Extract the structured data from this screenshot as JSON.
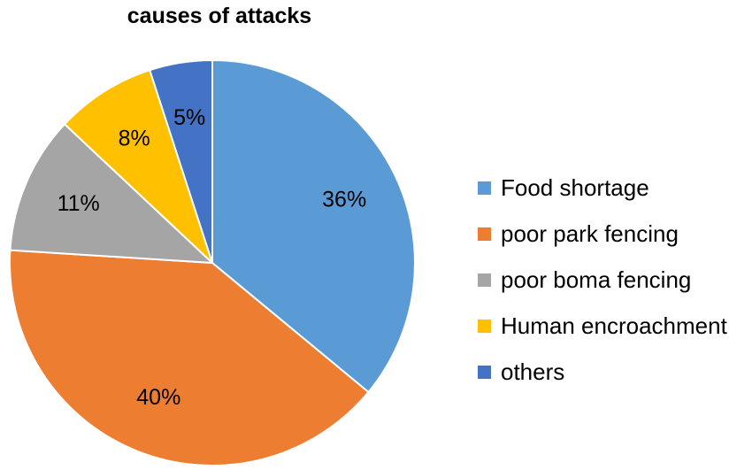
{
  "chart_data": {
    "type": "pie",
    "title": "causes of attacks",
    "categories": [
      "Food shortage",
      "poor park fencing",
      "poor boma fencing",
      "Human encroachment",
      "others"
    ],
    "values": [
      36,
      40,
      11,
      8,
      5
    ],
    "labels": [
      "36%",
      "40%",
      "11%",
      "8%",
      "5%"
    ],
    "colors": [
      "#5B9BD5",
      "#ED7D31",
      "#A5A5A5",
      "#FFC000",
      "#4472C4"
    ],
    "legend": "right"
  }
}
